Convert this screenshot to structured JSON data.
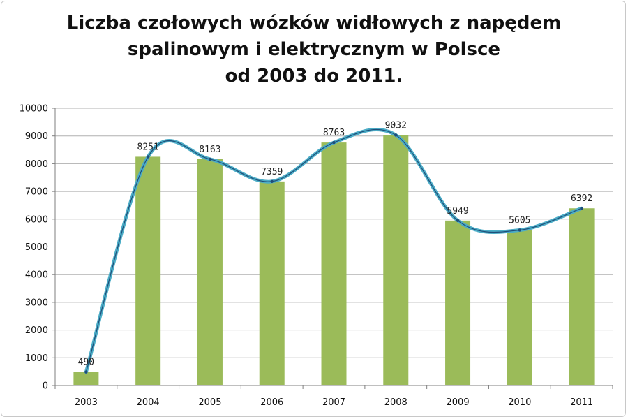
{
  "chart_data": {
    "type": "bar",
    "title_lines": [
      "Liczba czołowych wózków widłowych z napędem",
      "spalinowym i elektrycznym w Polsce",
      "od 2003 do 2011."
    ],
    "categories": [
      "2003",
      "2004",
      "2005",
      "2006",
      "2007",
      "2008",
      "2009",
      "2010",
      "2011"
    ],
    "values": [
      490,
      8251,
      8163,
      7359,
      8763,
      9032,
      5949,
      5605,
      6392
    ],
    "trend_line": "smoothed line through the bar values",
    "ylim": [
      0,
      10000
    ],
    "yticks": [
      0,
      1000,
      2000,
      3000,
      4000,
      5000,
      6000,
      7000,
      8000,
      9000,
      10000
    ],
    "grid": true,
    "legend": "none",
    "colors": {
      "bar": "#9bbb59",
      "line": "#4bacc6",
      "line_core": "#1f4e79",
      "grid": "#b0b0b0"
    }
  }
}
